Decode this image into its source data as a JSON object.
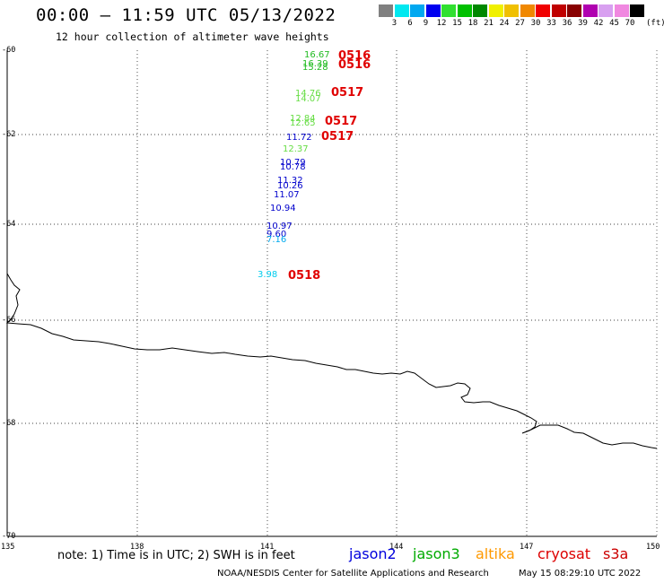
{
  "header": {
    "title": "00:00 – 11:59 UTC 05/13/2022",
    "subtitle": "12 hour collection of altimeter wave heights"
  },
  "legend": {
    "swatches": [
      "#808080",
      "#00e8f0",
      "#00a8f0",
      "#0000f0",
      "#30e030",
      "#00c000",
      "#008800",
      "#f0f000",
      "#f0c000",
      "#f08800",
      "#f00000",
      "#c00000",
      "#880000",
      "#b000b0",
      "#d8a0f0",
      "#f088e0",
      "#000000"
    ],
    "ticks": [
      "3",
      "6",
      "9",
      "12",
      "15",
      "18",
      "21",
      "24",
      "27",
      "30",
      "33",
      "36",
      "39",
      "42",
      "45",
      "70"
    ],
    "unit": "(ft)"
  },
  "axes": {
    "lat_labels": [
      "-60",
      "-62",
      "-64",
      "-66",
      "-68",
      "-70"
    ],
    "lon_labels": [
      "135",
      "138",
      "141",
      "144",
      "147",
      "150"
    ]
  },
  "observations": [
    {
      "text": "16.67",
      "color": "#22bb22"
    },
    {
      "text": "16.39",
      "color": "#22bb22"
    },
    {
      "text": "15.28",
      "color": "#22bb22"
    },
    {
      "text": "14.76",
      "color": "#66dd44"
    },
    {
      "text": "14.07",
      "color": "#66dd44"
    },
    {
      "text": "12.84",
      "color": "#66dd44"
    },
    {
      "text": "12.65",
      "color": "#66dd44"
    },
    {
      "text": "11.72",
      "color": "#0000cc"
    },
    {
      "text": "12.37",
      "color": "#66dd44"
    },
    {
      "text": "10.79",
      "color": "#0000cc"
    },
    {
      "text": "10.78",
      "color": "#0000cc"
    },
    {
      "text": "11.32",
      "color": "#0000cc"
    },
    {
      "text": "10.26",
      "color": "#0000cc"
    },
    {
      "text": "11.07",
      "color": "#0000cc"
    },
    {
      "text": "10.94",
      "color": "#0000cc"
    },
    {
      "text": "10.97",
      "color": "#0000cc"
    },
    {
      "text": "9.60",
      "color": "#0000cc"
    },
    {
      "text": "7.16",
      "color": "#00aaee"
    },
    {
      "text": "3.98",
      "color": "#00ccee"
    }
  ],
  "passes": [
    "0516",
    "0516",
    "0517",
    "0517",
    "0517",
    "0518"
  ],
  "footer": {
    "note": "note: 1) Time is in UTC; 2) SWH is in feet",
    "satellites": [
      {
        "name": "jason2",
        "color": "#0000dd"
      },
      {
        "name": "jason3",
        "color": "#00aa00"
      },
      {
        "name": "altika",
        "color": "#ff9900"
      },
      {
        "name": "cryosat",
        "color": "#dd0000"
      },
      {
        "name": "s3a",
        "color": "#cc0000"
      }
    ],
    "credit": "NOAA/NESDIS Center for Satellite Applications and Research",
    "generated": "May 15 08:29:10 UTC 2022"
  }
}
